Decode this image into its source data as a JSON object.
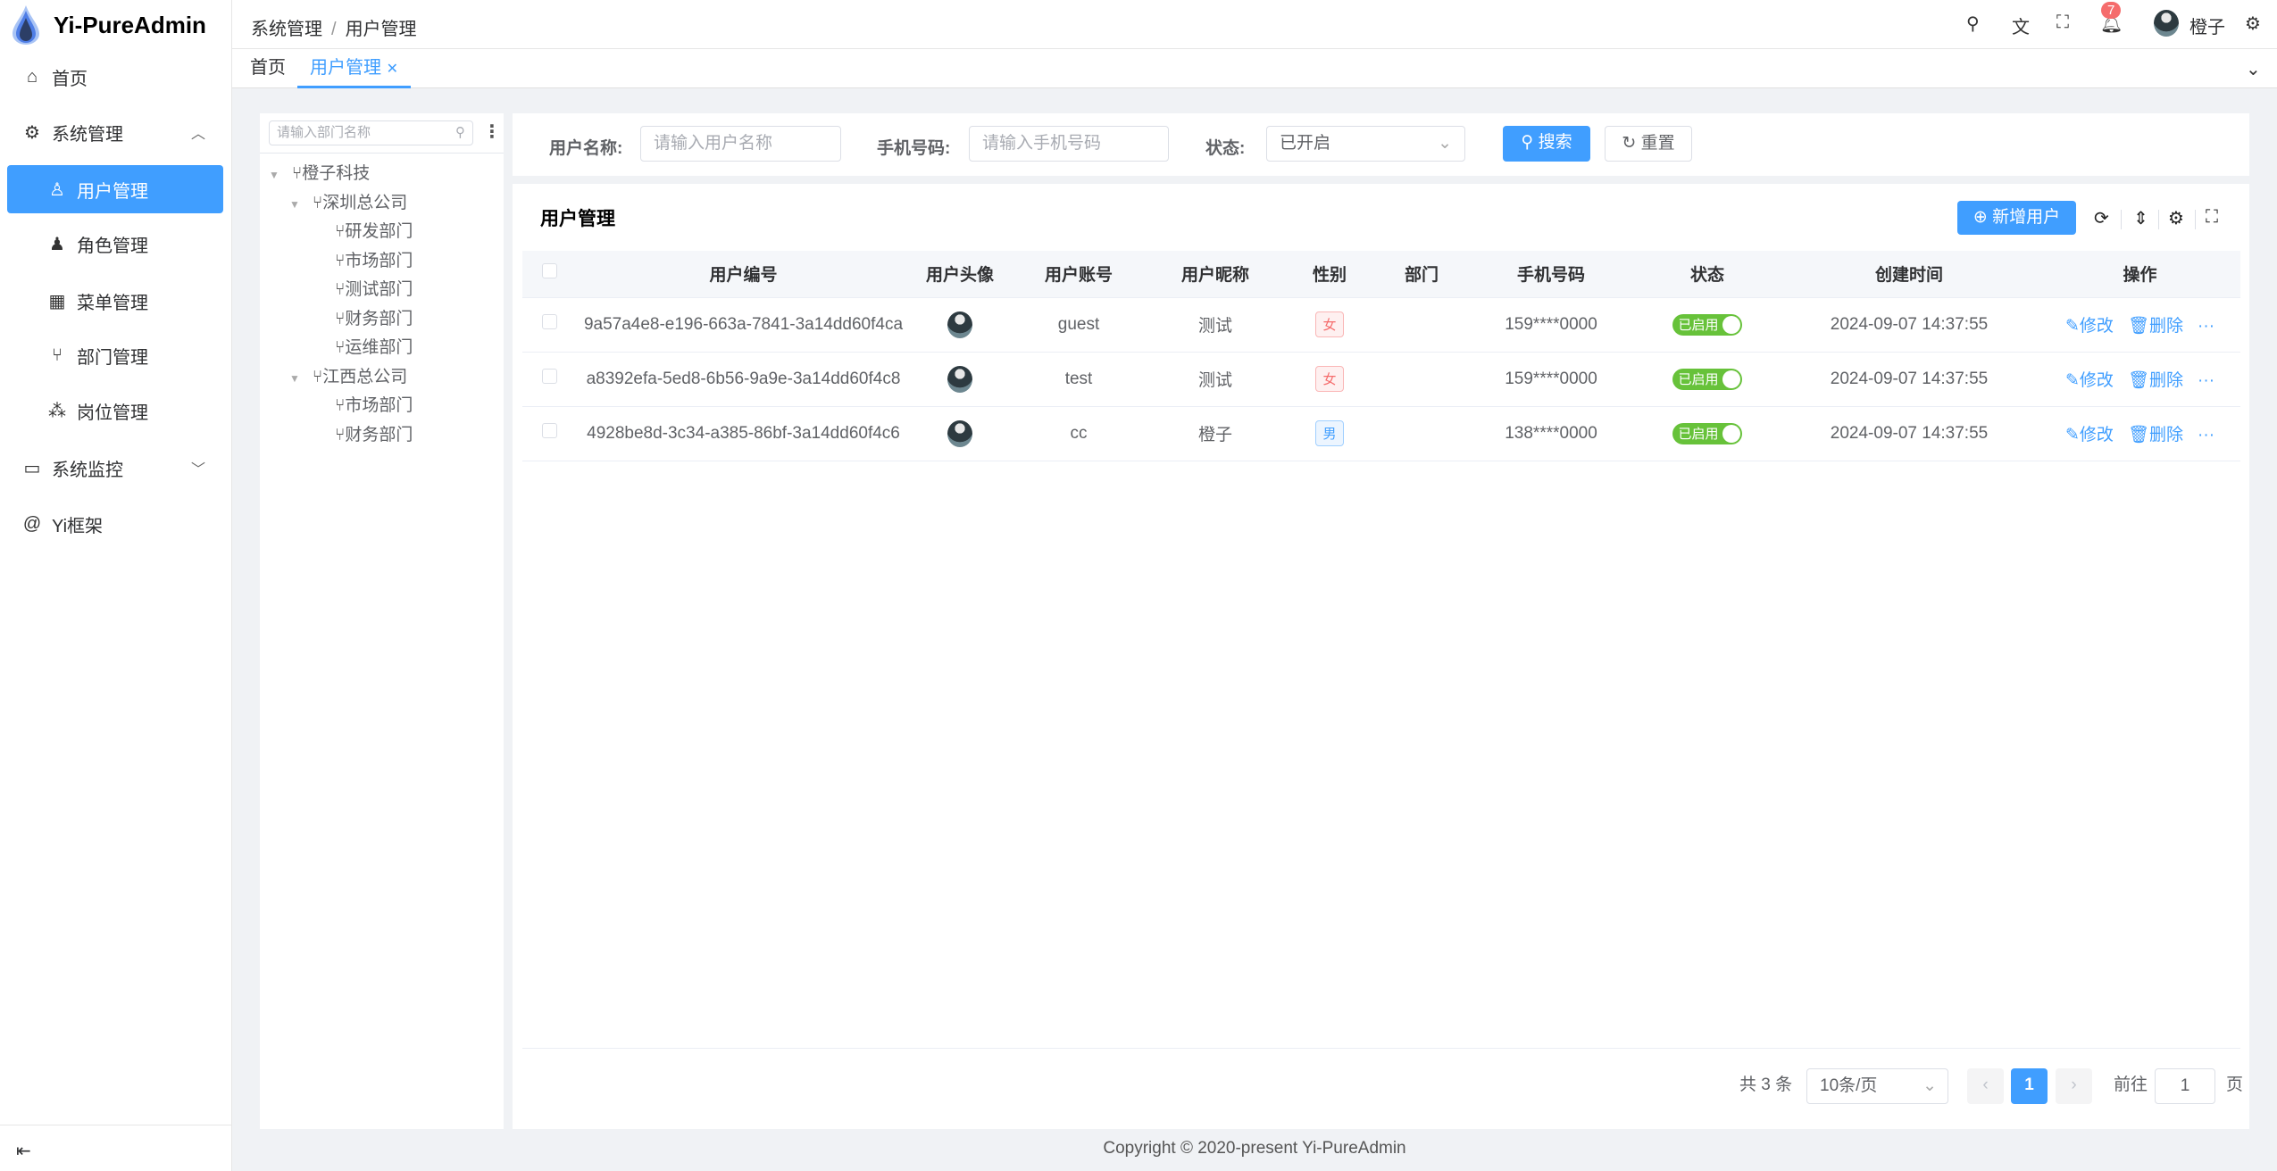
{
  "app": {
    "title": "Yi-PureAdmin",
    "logo_icon": "water-drop-icon"
  },
  "sidebar": {
    "items": [
      {
        "label": "首页",
        "icon": "home-icon"
      },
      {
        "label": "系统管理",
        "icon": "gear-icon",
        "expanded": true
      },
      {
        "label": "用户管理",
        "icon": "user-lock-icon",
        "active": true
      },
      {
        "label": "角色管理",
        "icon": "role-icon"
      },
      {
        "label": "菜单管理",
        "icon": "grid-icon"
      },
      {
        "label": "部门管理",
        "icon": "branch-icon"
      },
      {
        "label": "岗位管理",
        "icon": "nodes-icon"
      },
      {
        "label": "系统监控",
        "icon": "monitor-icon"
      },
      {
        "label": "Yi框架",
        "icon": "at-icon"
      }
    ],
    "collapse_icon": "menu-fold-icon"
  },
  "header": {
    "breadcrumb": [
      "系统管理",
      "用户管理"
    ],
    "notification_count": "7",
    "username": "橙子"
  },
  "tabs": [
    {
      "label": "首页"
    },
    {
      "label": "用户管理",
      "active": true
    }
  ],
  "tree": {
    "search_placeholder": "请输入部门名称",
    "nodes": [
      "橙子科技",
      "深圳总公司",
      "研发部门",
      "市场部门",
      "测试部门",
      "财务部门",
      "运维部门",
      "江西总公司",
      "市场部门",
      "财务部门"
    ]
  },
  "filters": {
    "username_label": "用户名称:",
    "username_placeholder": "请输入用户名称",
    "phone_label": "手机号码:",
    "phone_placeholder": "请输入手机号码",
    "status_label": "状态:",
    "status_value": "已开启",
    "search": "搜索",
    "reset": "重置"
  },
  "table": {
    "title": "用户管理",
    "add_button": "新增用户",
    "columns": [
      "用户编号",
      "用户头像",
      "用户账号",
      "用户昵称",
      "性别",
      "部门",
      "手机号码",
      "状态",
      "创建时间",
      "操作"
    ],
    "rows": [
      {
        "id": "9a57a4e8-e196-663a-7841-3a14dd60f4ca",
        "account": "guest",
        "nickname": "测试",
        "gender": "女",
        "dept": "",
        "phone": "159****0000",
        "status": "已启用",
        "created": "2024-09-07 14:37:55"
      },
      {
        "id": "a8392efa-5ed8-6b56-9a9e-3a14dd60f4c8",
        "account": "test",
        "nickname": "测试",
        "gender": "女",
        "dept": "",
        "phone": "159****0000",
        "status": "已启用",
        "created": "2024-09-07 14:37:55"
      },
      {
        "id": "4928be8d-3c34-a385-86bf-3a14dd60f4c6",
        "account": "cc",
        "nickname": "橙子",
        "gender": "男",
        "dept": "",
        "phone": "138****0000",
        "status": "已启用",
        "created": "2024-09-07 14:37:55"
      }
    ],
    "actions": {
      "edit": "修改",
      "delete": "删除",
      "more": "···"
    }
  },
  "pagination": {
    "total": "共 3 条",
    "page_size": "10条/页",
    "current": "1",
    "goto_label": "前往",
    "goto_value": "1",
    "page_suffix": "页"
  },
  "footer": "Copyright © 2020-present Yi-PureAdmin",
  "colors": {
    "primary": "#409eff",
    "success": "#67c23a",
    "danger": "#f56c6c"
  }
}
